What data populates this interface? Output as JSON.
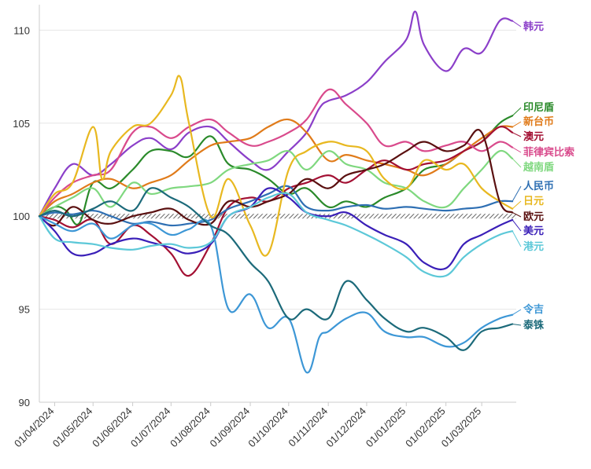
{
  "chart_data": {
    "type": "line",
    "title": "",
    "xlabel": "",
    "ylabel": "",
    "ylim": [
      90,
      111.2
    ],
    "yticks": [
      90,
      95,
      100,
      105,
      110
    ],
    "xlim": [
      "2024-03-20",
      "2025-03-28"
    ],
    "xticks": [
      "01/04/2024",
      "01/05/2024",
      "01/06/2024",
      "01/07/2024",
      "01/08/2024",
      "01/09/2024",
      "01/10/2024",
      "01/11/2024",
      "01/12/2024",
      "01/01/2025",
      "01/02/2025",
      "01/03/2025"
    ],
    "baseline": 100,
    "grid": "horizontal",
    "legend": "labels at right end of each line",
    "series": [
      {
        "name": "韩元",
        "color": "#8b3fc9",
        "label_value": 110.5,
        "x": [
          "2024-03-20",
          "2024-04-01",
          "2024-04-15",
          "2024-05-01",
          "2024-05-15",
          "2024-06-01",
          "2024-06-15",
          "2024-07-01",
          "2024-07-15",
          "2024-08-01",
          "2024-08-15",
          "2024-09-01",
          "2024-09-15",
          "2024-10-01",
          "2024-10-15",
          "2024-10-25",
          "2024-11-01",
          "2024-11-15",
          "2024-12-01",
          "2024-12-15",
          "2025-01-01",
          "2025-01-08",
          "2025-01-15",
          "2025-02-01",
          "2025-02-15",
          "2025-03-01",
          "2025-03-15",
          "2025-03-25"
        ],
        "values": [
          100,
          101.5,
          102.8,
          102.2,
          102.8,
          103.8,
          104.2,
          103.6,
          104.5,
          104.8,
          104.0,
          103.0,
          102.5,
          103.5,
          104.5,
          105.8,
          106.2,
          106.5,
          107.2,
          108.3,
          109.5,
          111.0,
          109.2,
          107.8,
          109.0,
          108.8,
          110.5,
          110.5
        ]
      },
      {
        "name": "印尼盾",
        "color": "#2a8a2a",
        "label_value": 105.4,
        "x": [
          "2024-03-20",
          "2024-04-01",
          "2024-04-10",
          "2024-04-20",
          "2024-05-01",
          "2024-05-15",
          "2024-06-01",
          "2024-06-15",
          "2024-07-01",
          "2024-07-15",
          "2024-08-01",
          "2024-08-15",
          "2024-09-01",
          "2024-09-15",
          "2024-10-01",
          "2024-10-15",
          "2024-11-01",
          "2024-11-15",
          "2024-12-01",
          "2024-12-15",
          "2025-01-01",
          "2025-01-15",
          "2025-02-01",
          "2025-02-15",
          "2025-03-01",
          "2025-03-15",
          "2025-03-25"
        ],
        "values": [
          100,
          100.5,
          100.3,
          99.6,
          101.8,
          101.5,
          102.5,
          103.5,
          103.5,
          103.2,
          104.3,
          102.8,
          102.5,
          102.0,
          101.2,
          101.5,
          100.5,
          100.8,
          100.5,
          101.0,
          101.5,
          102.5,
          102.8,
          103.5,
          104.0,
          105.0,
          105.4
        ]
      },
      {
        "name": "新台币",
        "color": "#e07b1a",
        "label_value": 104.8,
        "x": [
          "2024-03-20",
          "2024-04-01",
          "2024-04-15",
          "2024-05-01",
          "2024-05-15",
          "2024-06-01",
          "2024-06-15",
          "2024-07-01",
          "2024-07-15",
          "2024-08-01",
          "2024-08-15",
          "2024-09-01",
          "2024-09-15",
          "2024-10-01",
          "2024-10-15",
          "2024-11-01",
          "2024-11-15",
          "2024-12-01",
          "2024-12-15",
          "2025-01-01",
          "2025-01-15",
          "2025-02-01",
          "2025-02-15",
          "2025-03-01",
          "2025-03-15",
          "2025-03-25"
        ],
        "values": [
          100,
          100.8,
          101.2,
          101.8,
          102.0,
          101.5,
          101.8,
          102.2,
          103.0,
          103.8,
          104.0,
          104.2,
          104.8,
          105.2,
          104.5,
          103.0,
          103.3,
          103.0,
          102.8,
          102.5,
          102.2,
          102.8,
          103.5,
          104.2,
          104.8,
          104.8
        ]
      },
      {
        "name": "澳元",
        "color": "#a31033",
        "label_value": 104.5,
        "x": [
          "2024-03-20",
          "2024-04-01",
          "2024-04-15",
          "2024-05-01",
          "2024-05-15",
          "2024-06-01",
          "2024-06-15",
          "2024-07-01",
          "2024-07-15",
          "2024-08-01",
          "2024-08-15",
          "2024-09-01",
          "2024-09-15",
          "2024-10-01",
          "2024-10-15",
          "2024-11-01",
          "2024-11-15",
          "2024-12-01",
          "2024-12-15",
          "2025-01-01",
          "2025-01-15",
          "2025-02-01",
          "2025-02-15",
          "2025-03-01",
          "2025-03-15",
          "2025-03-25"
        ],
        "values": [
          100,
          99.8,
          99.4,
          99.8,
          98.5,
          99.5,
          99.0,
          98.0,
          96.8,
          98.5,
          100.5,
          101.0,
          100.8,
          101.5,
          101.8,
          102.2,
          101.8,
          102.5,
          103.0,
          102.5,
          102.8,
          103.0,
          103.5,
          104.0,
          104.8,
          104.5
        ]
      },
      {
        "name": "菲律宾比索",
        "color": "#d94a8c",
        "label_value": 103.7,
        "x": [
          "2024-03-20",
          "2024-04-01",
          "2024-04-15",
          "2024-05-01",
          "2024-05-15",
          "2024-06-01",
          "2024-06-15",
          "2024-07-01",
          "2024-07-15",
          "2024-08-01",
          "2024-08-15",
          "2024-09-01",
          "2024-09-15",
          "2024-10-01",
          "2024-10-15",
          "2024-11-01",
          "2024-11-15",
          "2024-12-01",
          "2024-12-15",
          "2025-01-01",
          "2025-01-15",
          "2025-02-01",
          "2025-02-15",
          "2025-03-01",
          "2025-03-15",
          "2025-03-25"
        ],
        "values": [
          100,
          101.0,
          101.8,
          102.2,
          102.5,
          104.5,
          104.8,
          104.2,
          104.8,
          105.2,
          104.5,
          103.8,
          104.0,
          104.5,
          105.2,
          106.8,
          106.0,
          105.0,
          103.8,
          104.0,
          103.5,
          103.8,
          104.0,
          103.5,
          104.0,
          103.7
        ]
      },
      {
        "name": "越南盾",
        "color": "#7fd87f",
        "label_value": 103.1,
        "x": [
          "2024-03-20",
          "2024-04-01",
          "2024-04-15",
          "2024-05-01",
          "2024-05-15",
          "2024-06-01",
          "2024-06-15",
          "2024-07-01",
          "2024-07-15",
          "2024-08-01",
          "2024-08-15",
          "2024-09-01",
          "2024-09-15",
          "2024-10-01",
          "2024-10-15",
          "2024-11-01",
          "2024-11-15",
          "2024-12-01",
          "2024-12-15",
          "2025-01-01",
          "2025-01-15",
          "2025-02-01",
          "2025-02-15",
          "2025-03-01",
          "2025-03-15",
          "2025-03-25"
        ],
        "values": [
          100,
          100.5,
          101.0,
          101.5,
          100.5,
          101.8,
          101.2,
          101.5,
          101.6,
          101.8,
          102.5,
          102.8,
          103.0,
          103.5,
          102.5,
          103.5,
          102.8,
          102.5,
          101.8,
          101.5,
          100.8,
          100.5,
          101.5,
          102.5,
          103.5,
          103.1
        ]
      },
      {
        "name": "人民币",
        "color": "#2e6fb3",
        "label_value": 100.8,
        "x": [
          "2024-03-20",
          "2024-04-01",
          "2024-04-15",
          "2024-05-01",
          "2024-05-15",
          "2024-06-01",
          "2024-06-15",
          "2024-07-01",
          "2024-07-15",
          "2024-08-01",
          "2024-08-15",
          "2024-09-01",
          "2024-09-15",
          "2024-10-01",
          "2024-10-15",
          "2024-11-01",
          "2024-11-15",
          "2024-12-01",
          "2024-12-15",
          "2025-01-01",
          "2025-01-15",
          "2025-02-01",
          "2025-02-15",
          "2025-03-01",
          "2025-03-15",
          "2025-03-25"
        ],
        "values": [
          100,
          100.2,
          100.1,
          100.3,
          100.0,
          99.6,
          99.7,
          99.5,
          99.6,
          99.8,
          100.4,
          100.8,
          101.2,
          101.6,
          100.5,
          100.3,
          100.5,
          100.6,
          100.4,
          100.5,
          100.4,
          100.3,
          100.4,
          100.5,
          100.8,
          100.8
        ]
      },
      {
        "name": "日元",
        "color": "#e8b820",
        "label_value": 100.4,
        "x": [
          "2024-03-20",
          "2024-04-01",
          "2024-04-15",
          "2024-05-01",
          "2024-05-08",
          "2024-05-15",
          "2024-06-01",
          "2024-06-15",
          "2024-07-01",
          "2024-07-08",
          "2024-07-15",
          "2024-08-01",
          "2024-08-15",
          "2024-09-01",
          "2024-09-15",
          "2024-10-01",
          "2024-10-15",
          "2024-11-01",
          "2024-11-15",
          "2024-12-01",
          "2024-12-15",
          "2025-01-01",
          "2025-01-15",
          "2025-02-01",
          "2025-02-15",
          "2025-03-01",
          "2025-03-15",
          "2025-03-25"
        ],
        "values": [
          100,
          101.2,
          101.8,
          104.8,
          102.0,
          103.5,
          104.8,
          105.0,
          106.5,
          107.5,
          105.0,
          100.0,
          102.0,
          99.5,
          98.0,
          102.5,
          103.5,
          104.0,
          103.8,
          103.5,
          102.0,
          101.5,
          103.0,
          102.5,
          102.8,
          101.5,
          100.8,
          100.4
        ]
      },
      {
        "name": "欧元",
        "color": "#5a1010",
        "label_value": 100.2,
        "x": [
          "2024-03-20",
          "2024-04-01",
          "2024-04-15",
          "2024-05-01",
          "2024-05-15",
          "2024-06-01",
          "2024-06-15",
          "2024-07-01",
          "2024-07-15",
          "2024-08-01",
          "2024-08-15",
          "2024-09-01",
          "2024-09-15",
          "2024-10-01",
          "2024-10-15",
          "2024-11-01",
          "2024-11-15",
          "2024-12-01",
          "2024-12-15",
          "2025-01-01",
          "2025-01-15",
          "2025-02-01",
          "2025-02-15",
          "2025-03-01",
          "2025-03-15",
          "2025-03-25"
        ],
        "values": [
          100,
          99.5,
          100.5,
          99.8,
          99.6,
          100.0,
          100.2,
          100.4,
          99.8,
          99.6,
          100.8,
          100.5,
          100.8,
          101.2,
          102.0,
          101.5,
          102.2,
          102.5,
          102.8,
          103.5,
          104.0,
          103.5,
          103.8,
          104.5,
          100.8,
          100.2
        ]
      },
      {
        "name": "美元",
        "color": "#3a1fb8",
        "label_value": 99.8,
        "x": [
          "2024-03-20",
          "2024-04-01",
          "2024-04-15",
          "2024-05-01",
          "2024-05-15",
          "2024-06-01",
          "2024-06-15",
          "2024-07-01",
          "2024-07-15",
          "2024-08-01",
          "2024-08-15",
          "2024-09-01",
          "2024-09-15",
          "2024-10-01",
          "2024-10-15",
          "2024-11-01",
          "2024-11-15",
          "2024-12-01",
          "2024-12-15",
          "2025-01-01",
          "2025-01-15",
          "2025-02-01",
          "2025-02-15",
          "2025-03-01",
          "2025-03-15",
          "2025-03-25"
        ],
        "values": [
          100,
          99.2,
          98.0,
          98.0,
          98.5,
          98.8,
          98.6,
          98.3,
          98.0,
          98.5,
          100.0,
          100.5,
          101.5,
          101.0,
          100.2,
          100.0,
          100.2,
          99.5,
          99.0,
          98.5,
          97.5,
          97.2,
          98.5,
          99.0,
          99.5,
          99.8
        ]
      },
      {
        "name": "港元",
        "color": "#5cc8d8",
        "label_value": 99.2,
        "x": [
          "2024-03-20",
          "2024-04-01",
          "2024-04-15",
          "2024-05-01",
          "2024-05-15",
          "2024-06-01",
          "2024-06-15",
          "2024-07-01",
          "2024-07-15",
          "2024-08-01",
          "2024-08-15",
          "2024-09-01",
          "2024-09-15",
          "2024-10-01",
          "2024-10-15",
          "2024-11-01",
          "2024-11-15",
          "2024-12-01",
          "2024-12-15",
          "2025-01-01",
          "2025-01-15",
          "2025-02-01",
          "2025-02-15",
          "2025-03-01",
          "2025-03-15",
          "2025-03-25"
        ],
        "values": [
          100,
          98.8,
          98.6,
          98.5,
          98.3,
          98.2,
          98.4,
          98.5,
          98.3,
          98.6,
          100.0,
          100.5,
          101.0,
          101.2,
          100.2,
          99.8,
          99.5,
          99.0,
          98.5,
          97.8,
          97.0,
          96.8,
          97.8,
          98.5,
          99.0,
          99.2
        ]
      },
      {
        "name": "令吉",
        "color": "#3d97d6",
        "label_value": 94.7,
        "x": [
          "2024-03-20",
          "2024-04-01",
          "2024-04-15",
          "2024-05-01",
          "2024-05-15",
          "2024-06-01",
          "2024-06-15",
          "2024-07-01",
          "2024-07-15",
          "2024-08-01",
          "2024-08-15",
          "2024-09-01",
          "2024-09-15",
          "2024-10-01",
          "2024-10-15",
          "2024-10-25",
          "2024-11-01",
          "2024-11-15",
          "2024-12-01",
          "2024-12-15",
          "2025-01-01",
          "2025-01-15",
          "2025-02-01",
          "2025-02-15",
          "2025-03-01",
          "2025-03-15",
          "2025-03-25"
        ],
        "values": [
          100,
          99.6,
          99.2,
          99.6,
          98.8,
          99.5,
          99.6,
          99.0,
          99.3,
          99.5,
          95.0,
          95.8,
          94.0,
          94.5,
          91.6,
          93.5,
          93.8,
          94.5,
          94.8,
          93.8,
          93.5,
          93.5,
          93.0,
          93.2,
          94.0,
          94.5,
          94.7
        ]
      },
      {
        "name": "泰铢",
        "color": "#1c6a7a",
        "label_value": 94.2,
        "x": [
          "2024-03-20",
          "2024-04-01",
          "2024-04-15",
          "2024-05-01",
          "2024-05-15",
          "2024-06-01",
          "2024-06-15",
          "2024-07-01",
          "2024-07-15",
          "2024-08-01",
          "2024-08-15",
          "2024-09-01",
          "2024-09-15",
          "2024-10-01",
          "2024-10-15",
          "2024-11-01",
          "2024-11-15",
          "2024-12-01",
          "2024-12-15",
          "2025-01-01",
          "2025-01-15",
          "2025-02-01",
          "2025-02-15",
          "2025-03-01",
          "2025-03-15",
          "2025-03-25"
        ],
        "values": [
          100,
          100.3,
          100.0,
          100.4,
          100.8,
          100.3,
          101.5,
          101.0,
          100.5,
          99.5,
          99.0,
          97.5,
          96.5,
          94.5,
          95.0,
          94.5,
          96.5,
          95.5,
          94.5,
          93.8,
          94.0,
          93.5,
          92.8,
          93.8,
          94.0,
          94.2
        ]
      }
    ]
  }
}
